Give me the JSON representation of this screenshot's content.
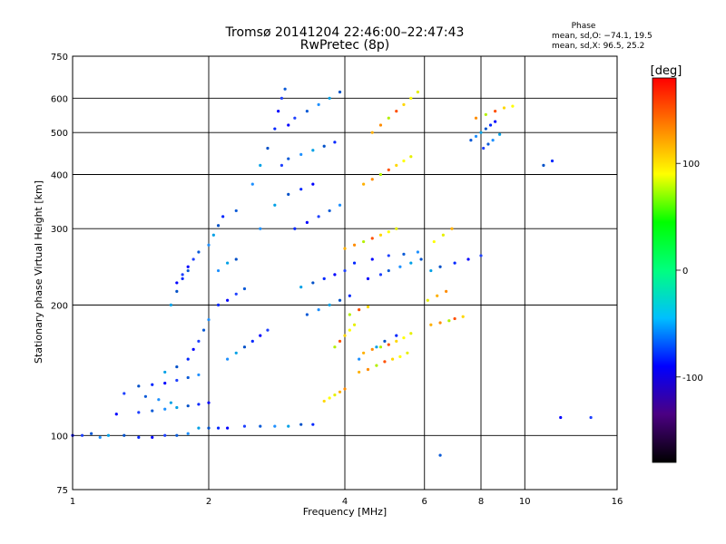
{
  "chart_data": {
    "type": "scatter",
    "title": "Tromsø 20141204 22:46:00–22:47:43",
    "subtitle": "RwPretec (8p)",
    "xlabel": "Frequency [MHz]",
    "ylabel": "Stationary phase Virtual Height [km]",
    "x_scale": "log",
    "y_scale": "log",
    "xlim": [
      1,
      16
    ],
    "ylim": [
      75,
      750
    ],
    "x_ticks": [
      1,
      2,
      4,
      6,
      8,
      10,
      16
    ],
    "y_ticks": [
      75,
      100,
      200,
      300,
      400,
      500,
      600,
      750
    ],
    "grid": true,
    "stats": {
      "title": "Phase",
      "line_o": "mean, sd,O: −74.1, 19.5",
      "line_x": "mean, sd,X:  96.5, 25.2"
    },
    "colorbar": {
      "label": "[deg]",
      "range": [
        -180,
        180
      ],
      "ticks": [
        100,
        0,
        -100
      ],
      "stops": [
        "#000000",
        "#4b0082",
        "#0000ff",
        "#00bfff",
        "#00ff7f",
        "#00ff00",
        "#ffff00",
        "#ff8000",
        "#ff0000"
      ]
    },
    "series": [
      {
        "color_meaning": "O-mode echoes, phase ≈ −74 deg (blue)",
        "points": [
          [
            1.0,
            100
          ],
          [
            1.05,
            100
          ],
          [
            1.1,
            101
          ],
          [
            1.15,
            99
          ],
          [
            1.2,
            100
          ],
          [
            1.3,
            100
          ],
          [
            1.4,
            99
          ],
          [
            1.5,
            99
          ],
          [
            1.6,
            100
          ],
          [
            1.7,
            100
          ],
          [
            1.8,
            101
          ],
          [
            1.9,
            104
          ],
          [
            2.0,
            104
          ],
          [
            2.1,
            104
          ],
          [
            2.2,
            104
          ],
          [
            2.4,
            105
          ],
          [
            2.6,
            105
          ],
          [
            2.8,
            105
          ],
          [
            3.0,
            105
          ],
          [
            3.2,
            106
          ],
          [
            3.4,
            106
          ],
          [
            1.25,
            112
          ],
          [
            1.4,
            113
          ],
          [
            1.5,
            114
          ],
          [
            1.6,
            115
          ],
          [
            1.7,
            116
          ],
          [
            1.8,
            117
          ],
          [
            1.9,
            118
          ],
          [
            2.0,
            119
          ],
          [
            1.3,
            125
          ],
          [
            1.45,
            123
          ],
          [
            1.55,
            121
          ],
          [
            1.65,
            119
          ],
          [
            1.4,
            130
          ],
          [
            1.5,
            131
          ],
          [
            1.6,
            132
          ],
          [
            1.7,
            134
          ],
          [
            1.8,
            136
          ],
          [
            1.9,
            138
          ],
          [
            1.6,
            140
          ],
          [
            1.7,
            144
          ],
          [
            1.8,
            150
          ],
          [
            1.85,
            158
          ],
          [
            1.9,
            165
          ],
          [
            1.95,
            175
          ],
          [
            2.0,
            185
          ],
          [
            1.65,
            200
          ],
          [
            1.7,
            215
          ],
          [
            1.75,
            230
          ],
          [
            1.8,
            245
          ],
          [
            1.85,
            255
          ],
          [
            1.9,
            265
          ],
          [
            2.0,
            275
          ],
          [
            2.05,
            290
          ],
          [
            2.1,
            305
          ],
          [
            2.15,
            320
          ],
          [
            1.7,
            225
          ],
          [
            1.75,
            235
          ],
          [
            1.8,
            240
          ],
          [
            2.1,
            240
          ],
          [
            2.2,
            250
          ],
          [
            2.3,
            255
          ],
          [
            2.1,
            200
          ],
          [
            2.2,
            205
          ],
          [
            2.3,
            212
          ],
          [
            2.4,
            218
          ],
          [
            2.2,
            150
          ],
          [
            2.3,
            155
          ],
          [
            2.4,
            160
          ],
          [
            2.5,
            165
          ],
          [
            2.6,
            170
          ],
          [
            2.7,
            175
          ],
          [
            2.3,
            330
          ],
          [
            2.5,
            380
          ],
          [
            2.6,
            420
          ],
          [
            2.7,
            460
          ],
          [
            2.8,
            510
          ],
          [
            2.85,
            560
          ],
          [
            2.9,
            600
          ],
          [
            2.95,
            630
          ],
          [
            2.6,
            300
          ],
          [
            2.8,
            340
          ],
          [
            3.0,
            360
          ],
          [
            3.2,
            370
          ],
          [
            3.4,
            380
          ],
          [
            2.9,
            420
          ],
          [
            3.0,
            435
          ],
          [
            3.2,
            445
          ],
          [
            3.4,
            455
          ],
          [
            3.6,
            465
          ],
          [
            3.8,
            475
          ],
          [
            3.0,
            520
          ],
          [
            3.1,
            540
          ],
          [
            3.3,
            560
          ],
          [
            3.5,
            580
          ],
          [
            3.7,
            600
          ],
          [
            3.9,
            620
          ],
          [
            3.1,
            300
          ],
          [
            3.3,
            310
          ],
          [
            3.5,
            320
          ],
          [
            3.7,
            330
          ],
          [
            3.9,
            340
          ],
          [
            3.2,
            220
          ],
          [
            3.4,
            225
          ],
          [
            3.6,
            230
          ],
          [
            3.8,
            235
          ],
          [
            4.0,
            240
          ],
          [
            3.3,
            190
          ],
          [
            3.5,
            195
          ],
          [
            3.7,
            200
          ],
          [
            3.9,
            205
          ],
          [
            4.1,
            210
          ],
          [
            4.5,
            230
          ],
          [
            4.8,
            235
          ],
          [
            5.0,
            240
          ],
          [
            5.3,
            245
          ],
          [
            5.6,
            250
          ],
          [
            5.9,
            255
          ],
          [
            4.2,
            250
          ],
          [
            4.6,
            255
          ],
          [
            5.0,
            260
          ],
          [
            5.4,
            262
          ],
          [
            5.8,
            265
          ],
          [
            6.2,
            240
          ],
          [
            6.5,
            245
          ],
          [
            7.0,
            250
          ],
          [
            7.5,
            255
          ],
          [
            8.0,
            260
          ],
          [
            7.6,
            480
          ],
          [
            7.8,
            490
          ],
          [
            8.0,
            500
          ],
          [
            8.2,
            510
          ],
          [
            8.4,
            520
          ],
          [
            8.6,
            530
          ],
          [
            8.1,
            460
          ],
          [
            8.3,
            470
          ],
          [
            8.5,
            480
          ],
          [
            8.8,
            495
          ],
          [
            11.0,
            420
          ],
          [
            11.5,
            430
          ],
          [
            12.0,
            110
          ],
          [
            14.0,
            110
          ],
          [
            6.5,
            90
          ],
          [
            4.3,
            150
          ],
          [
            4.7,
            160
          ],
          [
            4.9,
            165
          ],
          [
            5.2,
            170
          ]
        ]
      },
      {
        "color_meaning": "X-mode echoes, phase ≈ 96 deg (yellow/orange)",
        "points": [
          [
            3.6,
            120
          ],
          [
            3.7,
            122
          ],
          [
            3.8,
            124
          ],
          [
            3.9,
            126
          ],
          [
            4.0,
            128
          ],
          [
            3.8,
            160
          ],
          [
            3.9,
            165
          ],
          [
            4.0,
            170
          ],
          [
            4.1,
            175
          ],
          [
            4.2,
            180
          ],
          [
            4.3,
            140
          ],
          [
            4.5,
            142
          ],
          [
            4.7,
            145
          ],
          [
            4.9,
            148
          ],
          [
            5.1,
            150
          ],
          [
            5.3,
            152
          ],
          [
            5.5,
            155
          ],
          [
            4.4,
            155
          ],
          [
            4.6,
            158
          ],
          [
            4.8,
            160
          ],
          [
            5.0,
            162
          ],
          [
            5.2,
            165
          ],
          [
            5.4,
            168
          ],
          [
            5.6,
            172
          ],
          [
            4.0,
            270
          ],
          [
            4.2,
            275
          ],
          [
            4.4,
            280
          ],
          [
            4.6,
            285
          ],
          [
            4.8,
            290
          ],
          [
            5.0,
            295
          ],
          [
            5.2,
            300
          ],
          [
            4.4,
            380
          ],
          [
            4.6,
            390
          ],
          [
            4.8,
            400
          ],
          [
            5.0,
            410
          ],
          [
            5.2,
            420
          ],
          [
            5.4,
            430
          ],
          [
            5.6,
            440
          ],
          [
            4.6,
            500
          ],
          [
            4.8,
            520
          ],
          [
            5.0,
            540
          ],
          [
            5.2,
            560
          ],
          [
            5.4,
            580
          ],
          [
            5.6,
            600
          ],
          [
            5.8,
            620
          ],
          [
            6.2,
            180
          ],
          [
            6.5,
            182
          ],
          [
            6.8,
            184
          ],
          [
            7.0,
            186
          ],
          [
            7.3,
            188
          ],
          [
            6.3,
            280
          ],
          [
            6.6,
            290
          ],
          [
            6.9,
            300
          ],
          [
            7.8,
            540
          ],
          [
            8.2,
            550
          ],
          [
            8.6,
            560
          ],
          [
            9.0,
            570
          ],
          [
            9.4,
            575
          ],
          [
            6.1,
            205
          ],
          [
            6.4,
            210
          ],
          [
            6.7,
            215
          ],
          [
            4.1,
            190
          ],
          [
            4.3,
            195
          ],
          [
            4.5,
            198
          ]
        ]
      }
    ]
  }
}
